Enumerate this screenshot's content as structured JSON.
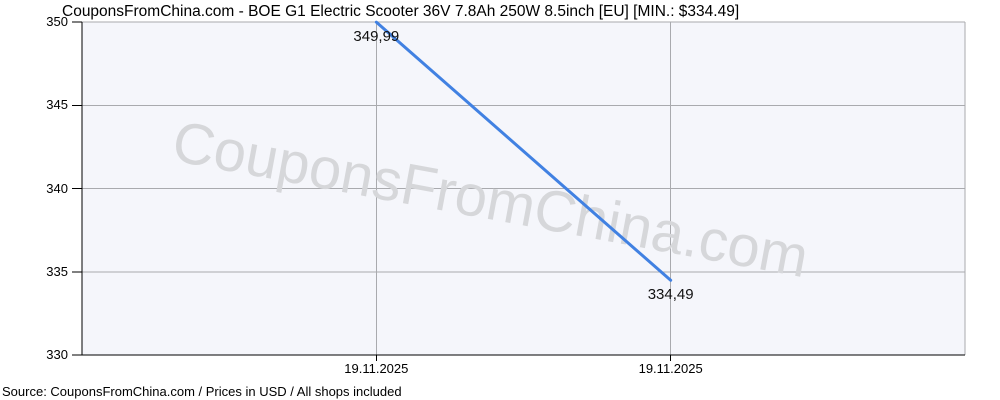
{
  "watermark": {
    "text": "CouponsFromChina.com"
  },
  "footer": {
    "text": "Source: CouponsFromChina.com / Prices in USD / All shops included"
  },
  "chart_data": {
    "type": "line",
    "title": "CouponsFromChina.com - BOE G1 Electric Scooter 36V 7.8Ah 250W 8.5inch [EU] [MIN.: $334.49]",
    "x": [
      "19.11.2025",
      "19.11.2025"
    ],
    "series": [
      {
        "name": "price",
        "values": [
          349.99,
          334.49
        ]
      }
    ],
    "point_labels": [
      "349,99",
      "334,49"
    ],
    "ylim": [
      330,
      350
    ],
    "yticks": [
      330,
      335,
      340,
      345,
      350
    ],
    "xlabel": "",
    "ylabel": "",
    "grid": true,
    "legend": "none",
    "line_color": "#4181e2",
    "plot_bg": "#f5f6fb",
    "grid_color": "#a9aaae",
    "axis_color": "#000000",
    "watermark_color": "#d6d7da"
  }
}
